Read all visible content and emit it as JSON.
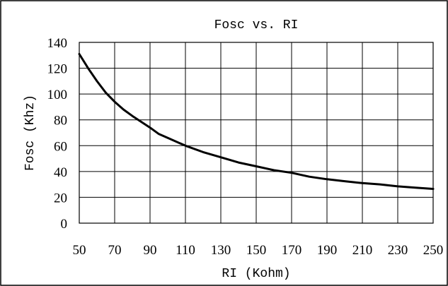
{
  "chart_data": {
    "type": "line",
    "title": "Fosc vs. RI",
    "xlabel": "RI (Kohm)",
    "ylabel": "Fosc (Khz)",
    "xlim": [
      50,
      250
    ],
    "ylim": [
      0,
      140
    ],
    "x_ticks": [
      "50",
      "70",
      "90",
      "110",
      "130",
      "150",
      "170",
      "190",
      "210",
      "230",
      "250"
    ],
    "y_ticks": [
      "0",
      "20",
      "40",
      "60",
      "80",
      "100",
      "120",
      "140"
    ],
    "grid": true,
    "legend": "none",
    "series": [
      {
        "x": [
          50,
          55,
          60,
          65,
          70,
          75,
          80,
          90,
          95,
          100,
          110,
          120,
          130,
          140,
          150,
          160,
          170,
          180,
          190,
          200,
          210,
          220,
          230,
          240,
          250
        ],
        "y": [
          131,
          120,
          110,
          101,
          94,
          88,
          83,
          74,
          69,
          66,
          60,
          55,
          51,
          47,
          44,
          41,
          39,
          36,
          34,
          32.5,
          31,
          30,
          28.5,
          27.5,
          26.5
        ],
        "color": "#000000"
      }
    ]
  }
}
